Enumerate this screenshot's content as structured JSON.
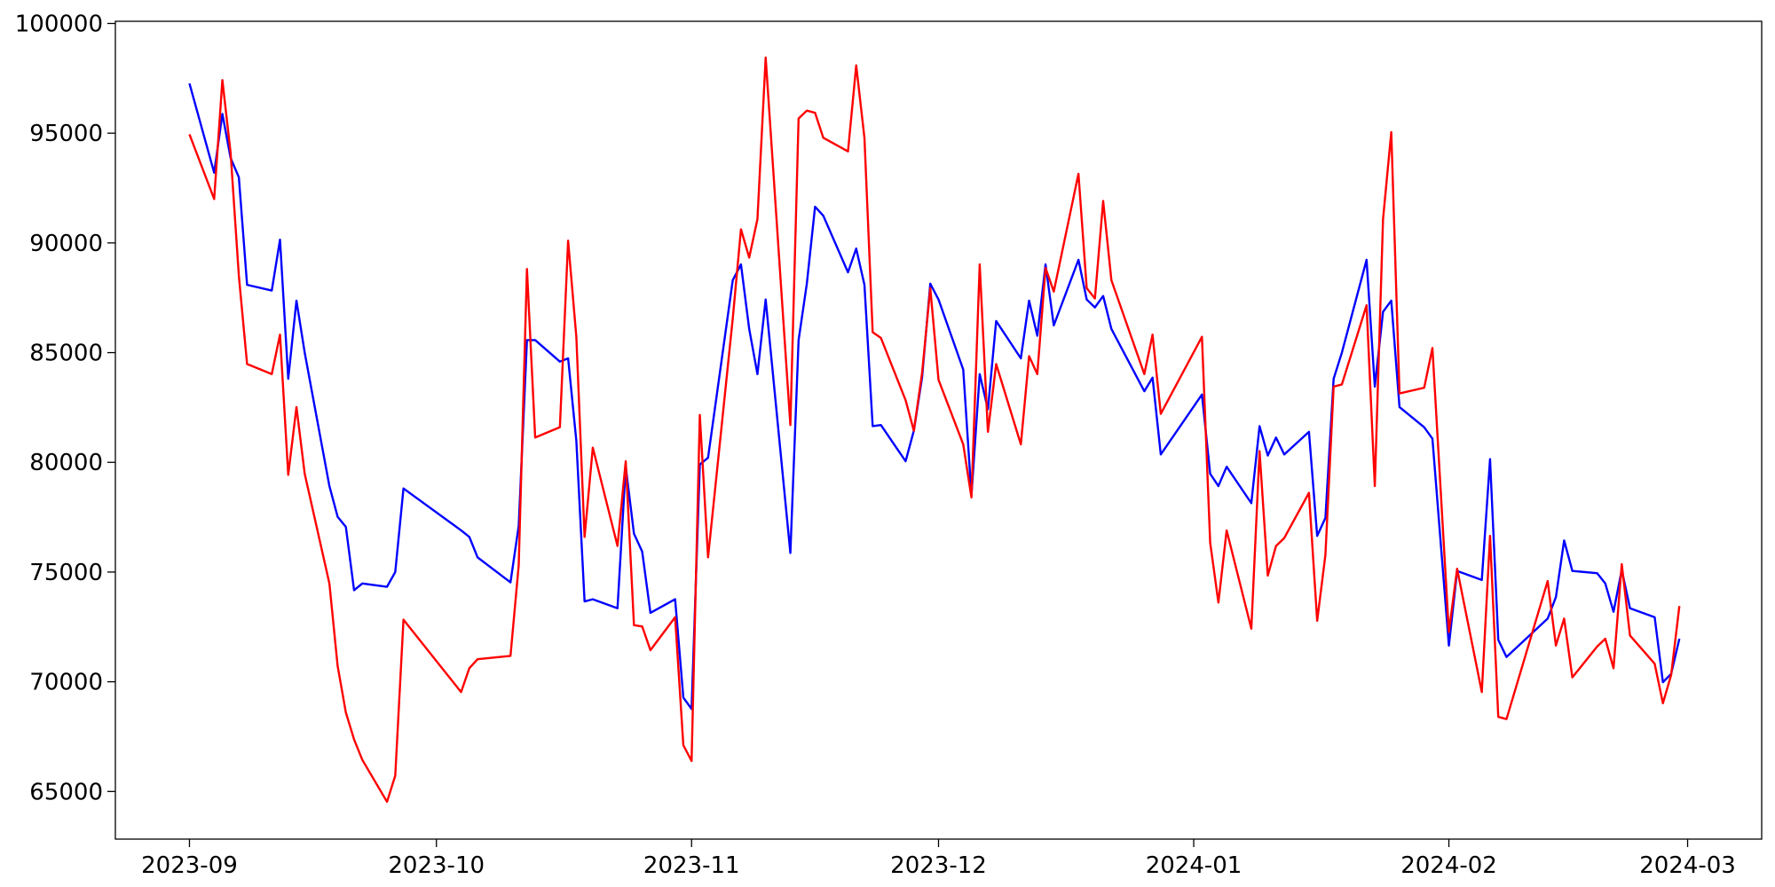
{
  "chart_data": {
    "type": "line",
    "x": [
      "2023-09-01",
      "2023-09-04",
      "2023-09-05",
      "2023-09-06",
      "2023-09-07",
      "2023-09-08",
      "2023-09-11",
      "2023-09-12",
      "2023-09-13",
      "2023-09-14",
      "2023-09-15",
      "2023-09-18",
      "2023-09-19",
      "2023-09-20",
      "2023-09-21",
      "2023-09-22",
      "2023-09-25",
      "2023-09-26",
      "2023-09-27",
      "2023-10-04",
      "2023-10-05",
      "2023-10-06",
      "2023-10-10",
      "2023-10-11",
      "2023-10-12",
      "2023-10-13",
      "2023-10-16",
      "2023-10-17",
      "2023-10-18",
      "2023-10-19",
      "2023-10-20",
      "2023-10-23",
      "2023-10-24",
      "2023-10-25",
      "2023-10-26",
      "2023-10-27",
      "2023-10-30",
      "2023-10-31",
      "2023-11-01",
      "2023-11-02",
      "2023-11-03",
      "2023-11-06",
      "2023-11-07",
      "2023-11-08",
      "2023-11-09",
      "2023-11-10",
      "2023-11-13",
      "2023-11-14",
      "2023-11-15",
      "2023-11-16",
      "2023-11-17",
      "2023-11-20",
      "2023-11-21",
      "2023-11-22",
      "2023-11-23",
      "2023-11-24",
      "2023-11-27",
      "2023-11-28",
      "2023-11-29",
      "2023-11-30",
      "2023-12-01",
      "2023-12-04",
      "2023-12-05",
      "2023-12-06",
      "2023-12-07",
      "2023-12-08",
      "2023-12-11",
      "2023-12-12",
      "2023-12-13",
      "2023-12-14",
      "2023-12-15",
      "2023-12-18",
      "2023-12-19",
      "2023-12-20",
      "2023-12-21",
      "2023-12-22",
      "2023-12-26",
      "2023-12-27",
      "2023-12-28",
      "2024-01-02",
      "2024-01-03",
      "2024-01-04",
      "2024-01-05",
      "2024-01-08",
      "2024-01-09",
      "2024-01-10",
      "2024-01-11",
      "2024-01-12",
      "2024-01-15",
      "2024-01-16",
      "2024-01-17",
      "2024-01-18",
      "2024-01-19",
      "2024-01-22",
      "2024-01-23",
      "2024-01-24",
      "2024-01-25",
      "2024-01-26",
      "2024-01-29",
      "2024-01-30",
      "2024-02-01",
      "2024-02-02",
      "2024-02-05",
      "2024-02-06",
      "2024-02-07",
      "2024-02-08",
      "2024-02-13",
      "2024-02-14",
      "2024-02-15",
      "2024-02-16",
      "2024-02-19",
      "2024-02-20",
      "2024-02-21",
      "2024-02-22",
      "2024-02-23",
      "2024-02-26",
      "2024-02-27",
      "2024-02-28",
      "2024-02-29"
    ],
    "series": [
      {
        "color": "blue",
        "values": [
          97268,
          93200,
          95880,
          93870,
          92990,
          88090,
          87830,
          90150,
          83810,
          87370,
          85000,
          78920,
          77520,
          77060,
          74170,
          74480,
          74330,
          75000,
          78810,
          76900,
          76600,
          75670,
          74530,
          77110,
          85570,
          85570,
          84590,
          84740,
          80980,
          73660,
          73760,
          73350,
          79800,
          76750,
          75930,
          73140,
          73760,
          69280,
          68760,
          79900,
          80210,
          88300,
          89020,
          86080,
          84020,
          87420,
          75870,
          85570,
          88140,
          91650,
          91240,
          88660,
          89740,
          88090,
          81650,
          81700,
          80050,
          81440,
          83860,
          88140,
          87420,
          84230,
          78500,
          84020,
          82420,
          86440,
          84740,
          87370,
          85770,
          89020,
          86240,
          89230,
          87420,
          87060,
          87580,
          86080,
          83240,
          83860,
          80360,
          83090,
          79480,
          78920,
          79800,
          78140,
          81650,
          80310,
          81130,
          80360,
          81390,
          76650,
          77470,
          83810,
          85000,
          89230,
          83450,
          86860,
          87370,
          82520,
          81600,
          81080,
          71650,
          75050,
          74640,
          80150,
          71910,
          71130,
          72880,
          73860,
          76440,
          75050,
          74950,
          74480,
          73190,
          75100,
          73350,
          72940,
          69980,
          70360,
          71960
        ]
      },
      {
        "color": "red",
        "values": [
          94948,
          92000,
          97420,
          94100,
          88500,
          84480,
          84020,
          85820,
          79430,
          82520,
          79480,
          74480,
          70720,
          68600,
          67370,
          66440,
          64530,
          65720,
          72830,
          69530,
          70620,
          71030,
          71180,
          75310,
          88810,
          81130,
          81600,
          90100,
          85720,
          76600,
          80670,
          76190,
          80050,
          72580,
          72520,
          71440,
          72940,
          67110,
          66390,
          82160,
          75670,
          86550,
          90620,
          89330,
          91080,
          98450,
          81700,
          95670,
          96030,
          95930,
          94790,
          94170,
          98090,
          94790,
          85930,
          85670,
          82830,
          81440,
          84070,
          87940,
          83760,
          80820,
          78400,
          89020,
          81390,
          84480,
          80820,
          84840,
          84020,
          88860,
          87780,
          93150,
          87940,
          87470,
          91910,
          88300,
          84020,
          85820,
          82210,
          85720,
          76340,
          73610,
          76900,
          72420,
          80510,
          74840,
          76190,
          76550,
          78610,
          72780,
          75780,
          83450,
          83550,
          87160,
          78920,
          91080,
          95050,
          83140,
          83400,
          85210,
          72270,
          75150,
          69530,
          76650,
          68400,
          68300,
          74590,
          71650,
          72880,
          70200,
          71600,
          71960,
          70620,
          75360,
          72110,
          70820,
          69020,
          70310,
          73450
        ]
      }
    ],
    "xlim": [
      "2023-08-23",
      "2024-03-10"
    ],
    "xticks": [
      {
        "value": "2023-09-01",
        "label": "2023-09"
      },
      {
        "value": "2023-10-01",
        "label": "2023-10"
      },
      {
        "value": "2023-11-01",
        "label": "2023-11"
      },
      {
        "value": "2023-12-01",
        "label": "2023-12"
      },
      {
        "value": "2024-01-01",
        "label": "2024-01"
      },
      {
        "value": "2024-02-01",
        "label": "2024-02"
      },
      {
        "value": "2024-03-01",
        "label": "2024-03"
      }
    ],
    "ylim": [
      62830,
      100100
    ],
    "yticks": [
      65000,
      70000,
      75000,
      80000,
      85000,
      90000,
      95000,
      100000
    ],
    "grid": false
  }
}
